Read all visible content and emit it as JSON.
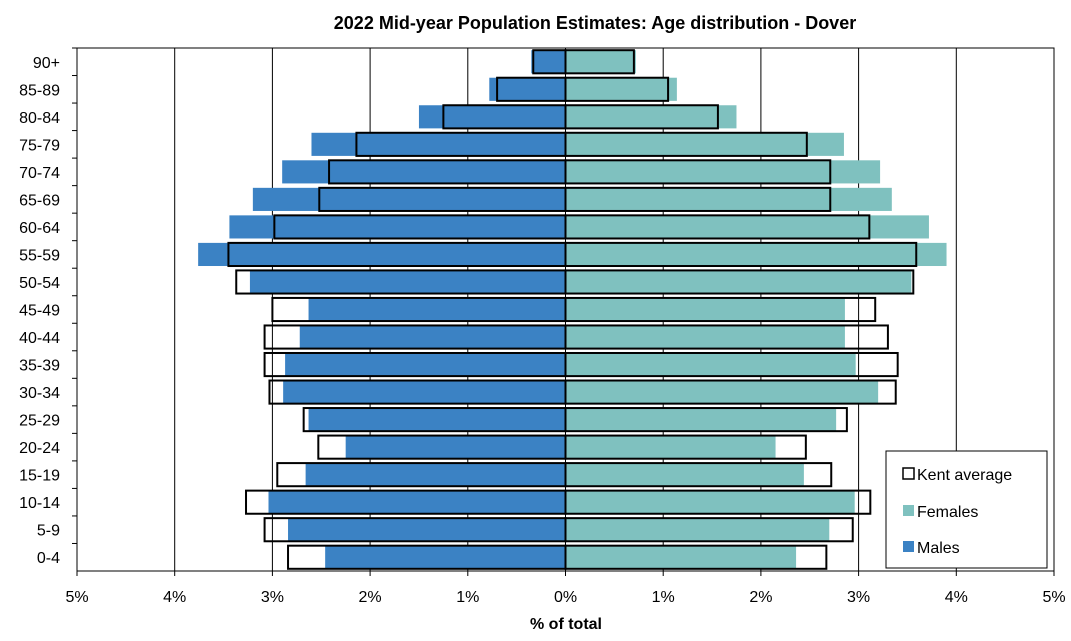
{
  "chart_data": {
    "type": "bar",
    "orientation": "horizontal",
    "title": "2022 Mid-year Population Estimates: Age distribution - Dover",
    "xlabel": "% of total",
    "ylabel": "",
    "xlim": [
      -5,
      5
    ],
    "xticks": [
      "5%",
      "4%",
      "3%",
      "2%",
      "1%",
      "0%",
      "1%",
      "2%",
      "3%",
      "4%",
      "5%"
    ],
    "grid": true,
    "legend_position": "bottom-right",
    "categories": [
      "0-4",
      "5-9",
      "10-14",
      "15-19",
      "20-24",
      "25-29",
      "30-34",
      "35-39",
      "40-44",
      "45-49",
      "50-54",
      "55-59",
      "60-64",
      "65-69",
      "70-74",
      "75-79",
      "80-84",
      "85-89",
      "90+"
    ],
    "series": [
      {
        "name": "Males",
        "color": "#3b82c4",
        "values": [
          -2.46,
          -2.84,
          -3.04,
          -2.66,
          -2.25,
          -2.63,
          -2.89,
          -2.87,
          -2.72,
          -2.63,
          -3.23,
          -3.76,
          -3.44,
          -3.2,
          -2.9,
          -2.6,
          -1.5,
          -0.78,
          -0.35
        ]
      },
      {
        "name": "Females",
        "color": "#7fc1bf",
        "values": [
          2.36,
          2.7,
          2.96,
          2.44,
          2.15,
          2.77,
          3.2,
          2.97,
          2.86,
          2.86,
          3.54,
          3.9,
          3.72,
          3.34,
          3.22,
          2.85,
          1.75,
          1.14,
          0.72
        ]
      },
      {
        "name": "Kent average",
        "color": "#ffffff",
        "male_values": [
          -2.84,
          -3.08,
          -3.27,
          -2.95,
          -2.53,
          -2.68,
          -3.03,
          -3.08,
          -3.08,
          -3.0,
          -3.37,
          -3.45,
          -2.98,
          -2.52,
          -2.42,
          -2.14,
          -1.25,
          -0.7,
          -0.33
        ],
        "female_values": [
          2.67,
          2.94,
          3.12,
          2.72,
          2.46,
          2.88,
          3.38,
          3.4,
          3.3,
          3.17,
          3.56,
          3.59,
          3.11,
          2.71,
          2.71,
          2.47,
          1.56,
          1.05,
          0.7
        ]
      }
    ]
  }
}
